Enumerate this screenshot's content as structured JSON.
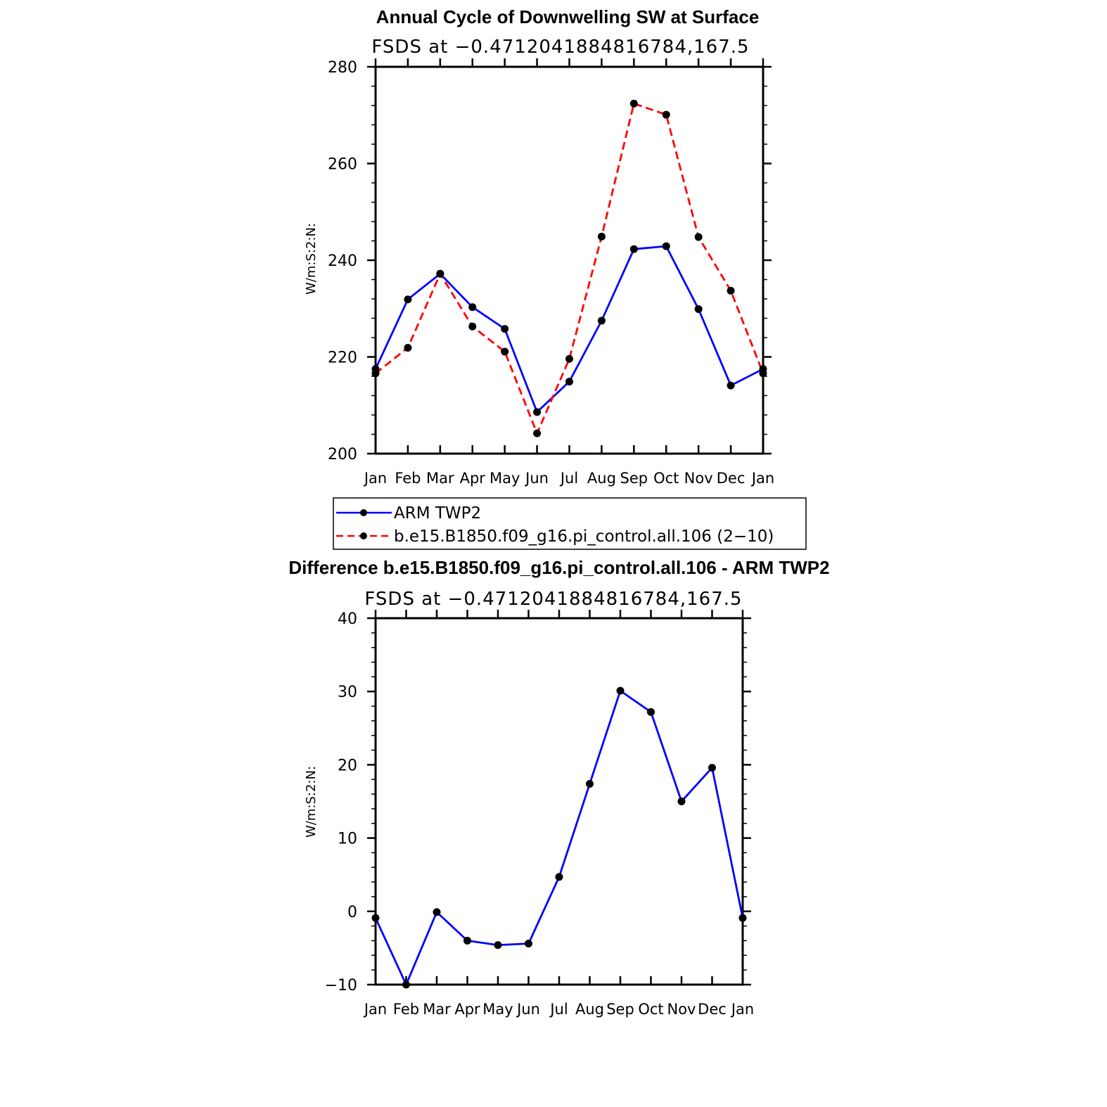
{
  "chart_data": [
    {
      "type": "line",
      "title": "Annual Cycle of Downwelling SW at Surface",
      "subtitle": "FSDS at −0.4712041884816784,167.5",
      "ylabel": "W/m:S:2:N:",
      "xlabel": "",
      "categories": [
        "Jan",
        "Feb",
        "Mar",
        "Apr",
        "May",
        "Jun",
        "Jul",
        "Aug",
        "Sep",
        "Oct",
        "Nov",
        "Dec",
        "Jan"
      ],
      "ylim": [
        200,
        280
      ],
      "yticks": [
        "200",
        "220",
        "240",
        "260",
        "280"
      ],
      "series": [
        {
          "name": "ARM TWP2",
          "color": "#0000ff",
          "dash": "solid",
          "values": [
            217.5,
            231.9,
            237.2,
            230.3,
            225.8,
            208.6,
            214.9,
            227.5,
            242.3,
            242.9,
            229.9,
            214.1,
            217.5
          ]
        },
        {
          "name": "b.e15.B1850.f09_g16.pi_control.all.106 (2−10)",
          "color": "#ff0000",
          "dash": "dashed",
          "values": [
            216.6,
            221.9,
            237.2,
            226.3,
            221.1,
            204.2,
            219.6,
            244.9,
            272.4,
            270.1,
            244.8,
            233.7,
            216.6
          ]
        }
      ],
      "legend": "below"
    },
    {
      "type": "line",
      "title": "Difference b.e15.B1850.f09_g16.pi_control.all.106 - ARM TWP2",
      "subtitle": "FSDS at −0.4712041884816784,167.5",
      "ylabel": "W/m:S:2:N:",
      "xlabel": "",
      "categories": [
        "Jan",
        "Feb",
        "Mar",
        "Apr",
        "May",
        "Jun",
        "Jul",
        "Aug",
        "Sep",
        "Oct",
        "Nov",
        "Dec",
        "Jan"
      ],
      "ylim": [
        -10,
        40
      ],
      "yticks": [
        "−10",
        "0",
        "10",
        "20",
        "30",
        "40"
      ],
      "series": [
        {
          "name": "Difference",
          "color": "#0000ff",
          "dash": "solid",
          "values": [
            -0.9,
            -10.0,
            -0.1,
            -4.0,
            -4.6,
            -4.4,
            4.7,
            17.4,
            30.1,
            27.2,
            15.0,
            19.6,
            -0.9
          ]
        }
      ]
    }
  ]
}
